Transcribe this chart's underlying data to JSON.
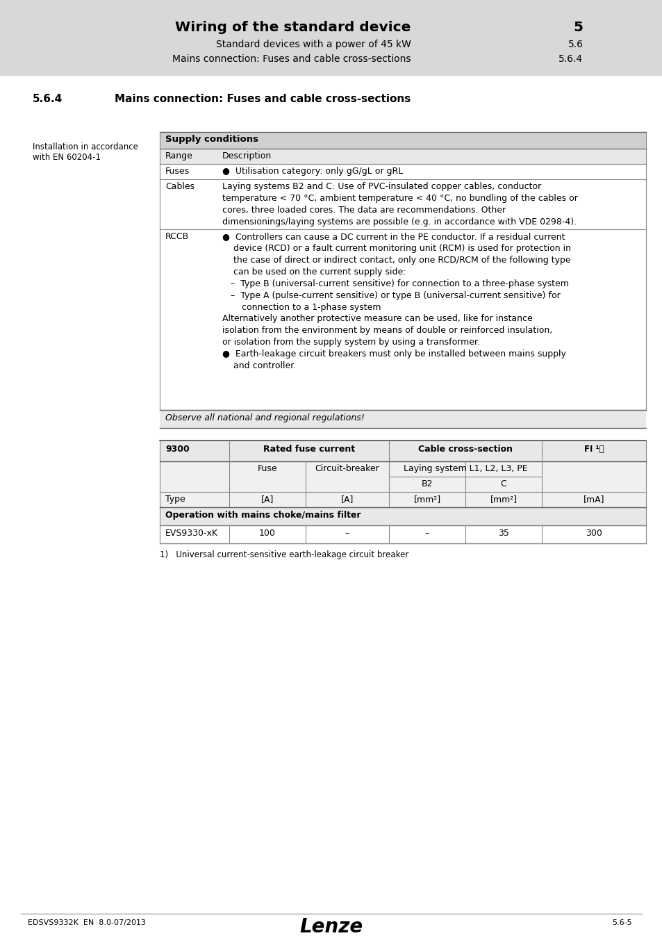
{
  "page_bg": "#f0f0f0",
  "content_bg": "#ffffff",
  "header_bg": "#d8d8d8",
  "header_title": "Wiring of the standard device",
  "header_num": "5",
  "header_sub1": "Standard devices with a power of 45 kW",
  "header_sub1_num": "5.6",
  "header_sub2": "Mains connection: Fuses and cable cross-sections",
  "header_sub2_num": "5.6.4",
  "section_title": "5.6.4  Mains connection: Fuses and cable cross-sections",
  "left_label_line1": "Installation in accordance",
  "left_label_line2": "with EN 60204-1",
  "supply_header": "Supply conditions",
  "supply_rows": [
    {
      "col1": "Range",
      "col2": "Description"
    },
    {
      "col1": "Fuses",
      "col2": "●  Utilisation category: only gG/gL or gRL"
    },
    {
      "col1": "Cables",
      "col2": "Laying systems B2 and C: Use of PVC-insulated copper cables, conductor\ntemperature < 70 °C, ambient temperature < 40 °C, no bundling of the cables or\ncores, three loaded cores. The data are recommendations. Other\ndimensionings/laying systems are possible (e.g. in accordance with VDE 0298-4)."
    },
    {
      "col1": "RCCB",
      "col2_bullet1": "Controllers can cause a DC current in the PE conductor. If a residual current\ndevice (RCD) or a fault current monitoring unit (RCM) is used for protection in\nthe case of direct or indirect contact, only one RCD/RCM of the following type\ncan be used on the current supply side:\n–  Type B (universal-current sensitive) for connection to a three-phase system\n–  Type A (pulse-current sensitive) or type B (universal-current sensitive) for\n   connection to a 1-phase system\nAlternatively another protective measure can be used, like for instance\nisolation from the environment by means of double or reinforced insulation,\nor isolation from the supply system by using a transformer.",
      "col2_bullet2": "Earth-leakage circuit breakers must only be installed between mains supply\nand controller."
    }
  ],
  "observe_text": "Observe all national and regional regulations!",
  "table2_headers": [
    "9300",
    "Rated fuse current",
    "Cable cross-section",
    "FI ¹⧠"
  ],
  "table2_sub_headers": [
    "",
    "Fuse",
    "Circuit-breaker",
    "Laying system L1, L2, L3, PE",
    ""
  ],
  "table2_sub_headers2": [
    "",
    "B2",
    "C",
    ""
  ],
  "table2_type_row": [
    "Type",
    "[A]",
    "[A]",
    "[mm²]",
    "[mm²]",
    "[mA]"
  ],
  "table2_section": "Operation with mains choke/mains filter",
  "table2_data": [
    [
      "EVS9330-xK",
      "100",
      "–",
      "–",
      "35",
      "300"
    ]
  ],
  "footnote": "1)   Universal current-sensitive earth-leakage circuit breaker",
  "footer_left": "EDSVS9332K  EN  8.0-07/2013",
  "footer_center": "Lenze",
  "footer_right": "5.6-5"
}
